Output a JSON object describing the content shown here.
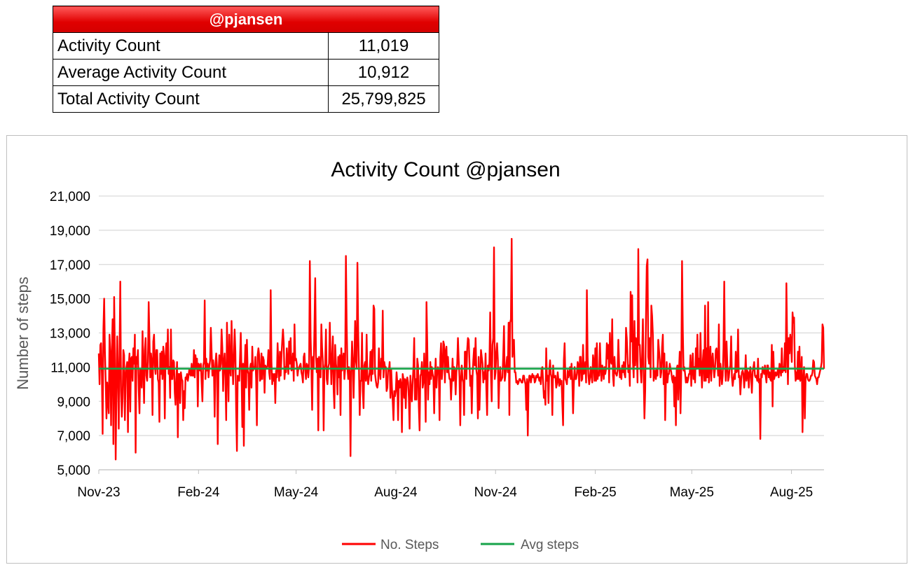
{
  "summary": {
    "header": "@pjansen",
    "rows": [
      {
        "label": "Activity Count",
        "value": "11,019"
      },
      {
        "label": "Average Activity Count",
        "value": "10,912"
      },
      {
        "label": "Total Activity Count",
        "value": "25,799,825"
      }
    ]
  },
  "colors": {
    "steps": "#ff0000",
    "avg": "#17a34a",
    "grid": "#d9d9d9"
  },
  "chart_data": {
    "type": "line",
    "title": "Activity Count @pjansen",
    "xlabel": "",
    "ylabel": "Number of steps",
    "ylim": [
      5000,
      21000
    ],
    "y_ticks": [
      "5,000",
      "7,000",
      "9,000",
      "11,000",
      "13,000",
      "15,000",
      "17,000",
      "19,000",
      "21,000"
    ],
    "x_tick_labels": [
      "Nov-23",
      "Feb-24",
      "May-24",
      "Aug-24",
      "Nov-24",
      "Feb-25",
      "May-25",
      "Aug-25"
    ],
    "x_range": [
      "2023-11-01",
      "2025-08-31"
    ],
    "grid": true,
    "legend_position": "bottom",
    "series": [
      {
        "name": "No. Steps",
        "x_start": "2023-11-01",
        "x_step": "1 day",
        "values": [
          11800,
          10000,
          12300,
          12400,
          10600,
          7100,
          13200,
          15000,
          11900,
          10100,
          8000,
          10100,
          9000,
          8300,
          12900,
          11800,
          7600,
          11800,
          13800,
          6500,
          15100,
          11800,
          5600,
          9700,
          12800,
          10500,
          7400,
          11700,
          16000,
          9600,
          8100,
          9200,
          12000,
          11700,
          7900,
          10400,
          11000,
          11300,
          7200,
          11100,
          11800,
          8400,
          11500,
          11600,
          10200,
          12100,
          11200,
          12900,
          6000,
          11600,
          11200,
          12000,
          9700,
          8300,
          10900,
          10500,
          9800,
          13100,
          11000,
          8900,
          12000,
          12700,
          10500,
          10200,
          11300,
          14800,
          12700,
          10400,
          11800,
          11300,
          8200,
          12500,
          12900,
          11100,
          10600,
          12000,
          12000,
          10300,
          10100,
          7800,
          11800,
          10600,
          11900,
          10300,
          12200,
          11600,
          8000,
          11600,
          12400,
          11000,
          13200,
          10600,
          11000,
          9200,
          13200,
          10300,
          10300,
          11400,
          11300,
          9500,
          8800,
          10300,
          11300,
          6900,
          10600,
          10600,
          8900,
          10700,
          10300,
          10200,
          7900,
          9600,
          8600,
          10400,
          10300,
          10600,
          10200,
          10500,
          10900,
          10600,
          10500,
          11200,
          10500,
          10500,
          12000,
          10400,
          11700,
          11000,
          11500,
          8700,
          11200,
          11100,
          10800,
          11200,
          10100,
          9000,
          11100,
          11300,
          14900,
          10300,
          11500,
          10800,
          11200,
          10400,
          11000,
          11400,
          13300,
          11900,
          10500,
          11400,
          10800,
          8100,
          11200,
          11800,
          11000,
          6500,
          10600,
          11700,
          10800,
          11200,
          13200,
          12100,
          9600,
          11300,
          11800,
          10400,
          7900,
          13600,
          11200,
          9000,
          12900,
          10900,
          10500,
          13700,
          11700,
          10000,
          11400,
          13200,
          11900,
          8400,
          6100,
          10500,
          10300,
          10200,
          11500,
          13000,
          10700,
          7500,
          11200,
          6400,
          10900,
          12300,
          9800,
          12600,
          10800,
          10600,
          8500,
          10900,
          11200,
          9800,
          12200,
          10800,
          11000,
          10900,
          11600,
          10300,
          7600,
          11700,
          12100,
          11700,
          10200,
          10300,
          11800,
          10300,
          11600,
          11400,
          9500,
          11100,
          10900,
          11000,
          11100,
          12000,
          10700,
          10300,
          15500,
          11300,
          10000,
          10600,
          10200,
          10600,
          8900,
          10800,
          10400,
          12400,
          11100,
          10200,
          11900,
          10500,
          11600,
          12500,
          13200,
          12400,
          10300,
          11000,
          10700,
          12100,
          11300,
          10600,
          12500,
          11200,
          12700,
          10800,
          10900,
          11800,
          10200,
          13500,
          11400,
          11500,
          11200,
          10500,
          10900,
          11000,
          11100,
          11200,
          10700,
          10500,
          10100,
          11600,
          11800,
          10800,
          10300,
          11200,
          11100,
          10400,
          11000,
          17200,
          12800,
          11000,
          8500,
          11600,
          10900,
          13300,
          16200,
          11700,
          10700,
          11500,
          7300,
          11600,
          10500,
          10400,
          13500,
          12100,
          11300,
          7300,
          10900,
          11200,
          13200,
          10300,
          10000,
          11000,
          11200,
          13600,
          11700,
          10000,
          11600,
          12800,
          9700,
          8600,
          12300,
          11200,
          10800,
          9400,
          11600,
          10400,
          11700,
          8200,
          12100,
          10800,
          11500,
          11800,
          10300,
          10900,
          17500,
          13500,
          11000,
          10300,
          11000,
          10700,
          5800,
          10700,
          12500,
          11400,
          9200,
          11300,
          13700,
          11400,
          11000,
          17100,
          13100,
          11000,
          8200,
          10200,
          10200,
          13000,
          9600,
          8600,
          11100,
          11300,
          10200,
          12900,
          10400,
          10000,
          10400,
          10700,
          11900,
          10200,
          12000,
          10600,
          14600,
          14400,
          10600,
          10200,
          9900,
          9800,
          10100,
          12100,
          10700,
          10300,
          11500,
          11000,
          14300,
          10400,
          11300,
          11000,
          11000,
          9600,
          9800,
          10900,
          10800,
          11300,
          9200,
          10900,
          9800,
          9000,
          7900,
          9600,
          9300,
          9600,
          10700,
          10100,
          7900,
          10200,
          9800,
          10300,
          10000,
          7200,
          10600,
          10300,
          9200,
          10300,
          8600,
          10200,
          10400,
          10100,
          9200,
          7400,
          10500,
          9700,
          9000,
          10100,
          11000,
          12700,
          9100,
          10300,
          9100,
          11500,
          11100,
          8700,
          7300,
          10500,
          10600,
          11300,
          9800,
          10100,
          11800,
          10300,
          7800,
          14800,
          12400,
          9100,
          10700,
          10000,
          11300,
          10300,
          11000,
          10600,
          10400,
          8300,
          10400,
          11500,
          9800,
          10700,
          11000,
          10800,
          7900,
          11600,
          12400,
          10300,
          10900,
          12500,
          12300,
          10100,
          11900,
          12200,
          10700,
          11600,
          10700,
          10300,
          10300,
          9100,
          10200,
          11500,
          10200,
          11000,
          10800,
          9400,
          10700,
          11200,
          12700,
          11400,
          10400,
          7600,
          10300,
          11100,
          10300,
          10100,
          8200,
          11900,
          11900,
          10300,
          12000,
          12700,
          12600,
          11300,
          9900,
          10500,
          8300,
          10400,
          11400,
          12100,
          11100,
          12700,
          10800,
          10500,
          8000,
          11600,
          8500,
          10100,
          12000,
          11600,
          11200,
          10100,
          10700,
          10300,
          11800,
          9700,
          8200,
          11100,
          10800,
          11300,
          14200,
          10500,
          9000,
          12300,
          12700,
          18000,
          10300,
          10700,
          11900,
          12400,
          11400,
          8600,
          10400,
          11000,
          10200,
          10300,
          10400,
          11700,
          13400,
          10200,
          10600,
          11100,
          11600,
          10700,
          13600,
          8200,
          13600,
          13800,
          18500,
          11600,
          12400,
          12600,
          10700,
          10700,
          10100,
          10200,
          10000,
          10100,
          10300,
          10300,
          10200,
          10100,
          10100,
          10500,
          10500,
          10200,
          10000,
          8500,
          10300,
          7000,
          10000,
          10500,
          10500,
          10100,
          10400,
          10600,
          10400,
          10500,
          10100,
          10200,
          10500,
          10400,
          10600,
          10400,
          10200,
          10400,
          10000,
          10900,
          11000,
          10100,
          9200,
          9600,
          8800,
          12100,
          10200,
          10500,
          8900,
          10800,
          11400,
          10600,
          10400,
          8200,
          11100,
          10400,
          10400,
          10500,
          9800,
          10000,
          10700,
          10200,
          9900,
          10300,
          10000,
          10200,
          8900,
          7600,
          11400,
          12400,
          10300,
          10200,
          10000,
          10800,
          10400,
          10600,
          11000,
          10300,
          11200,
          10300,
          8300,
          10000,
          11000,
          10300,
          10300,
          10600,
          11300,
          11100,
          9900,
          11600,
          11600,
          10200,
          10300,
          12300,
          10600,
          10700,
          11300,
          10100,
          15500,
          11600,
          10500,
          10000,
          10400,
          11000,
          10500,
          10100,
          11700,
          11300,
          10200,
          12100,
          10200,
          12400,
          10300,
          10700,
          10500,
          12400,
          11000,
          10200,
          11100,
          10900,
          10300,
          11000,
          10600,
          10900,
          12400,
          11500,
          12300,
          10100,
          13000,
          11400,
          11200,
          13800,
          10500,
          9900,
          11600,
          10700,
          10600,
          10500,
          10800,
          12600,
          11200,
          10400,
          10800,
          10300,
          11100,
          10700,
          11300,
          10600,
          10400,
          13300,
          12700,
          11600,
          10700,
          11100,
          9900,
          15400,
          12500,
          15200,
          11300,
          10400,
          13700,
          11100,
          12700,
          12200,
          10100,
          17900,
          12300,
          12300,
          10800,
          10100,
          11800,
          13800,
          10500,
          8000,
          9600,
          13800,
          16900,
          17300,
          11600,
          11200,
          12700,
          10400,
          14600,
          14000,
          12900,
          10200,
          10500,
          10800,
          10300,
          10900,
          10500,
          12600,
          12000,
          11400,
          10400,
          10700,
          12200,
          12900,
          10000,
          11800,
          7900,
          10200,
          11300,
          10100,
          10600,
          10600,
          11200,
          10900,
          10700,
          10300,
          10100,
          10500,
          8700,
          10400,
          7600,
          10900,
          11100,
          9100,
          10800,
          11900,
          8300,
          10700,
          17200,
          13200,
          10800,
          11000,
          10600,
          10100,
          10400,
          10100,
          10300,
          10600,
          10600,
          11700,
          9900,
          10900,
          11800,
          10300,
          11000,
          10100,
          12100,
          10900,
          12900,
          11000,
          11500,
          10500,
          13000,
          11000,
          9800,
          11300,
          12000,
          10200,
          14600,
          10200,
          12100,
          10400,
          14800,
          10100,
          11100,
          12200,
          10200,
          11400,
          11800,
          11000,
          10400,
          10900,
          12000,
          12100,
          11400,
          10500,
          13500,
          9900,
          11200,
          10700,
          10000,
          10500,
          12100,
          16000,
          11100,
          10200,
          12500,
          11200,
          10200,
          10400,
          10900,
          11100,
          12800,
          10400,
          9900,
          10300,
          10600,
          10300,
          11900,
          10700,
          10800,
          13200,
          10400,
          10500,
          9400,
          10200,
          10700,
          10800,
          10600,
          9800,
          10500,
          11700,
          10200,
          10800,
          10700,
          9800,
          10600,
          11000,
          10400,
          9500,
          10700,
          11000,
          11300,
          10500,
          10400,
          10500,
          10200,
          11500,
          10100,
          10300,
          6800,
          10600,
          10400,
          11000,
          10800,
          10600,
          11100,
          10500,
          10100,
          11100,
          11100,
          10400,
          10700,
          10300,
          10200,
          12300,
          8700,
          11900,
          10300,
          10500,
          10700,
          10500,
          10600,
          10900,
          10400,
          11200,
          10900,
          10500,
          12100,
          10700,
          11000,
          10800,
          12400,
          10700,
          15900,
          12300,
          10000,
          12700,
          11800,
          12900,
          12400,
          11300,
          14200,
          13600,
          13900,
          11100,
          10200,
          10700,
          10300,
          11900,
          10300,
          12200,
          10200,
          10400,
          11600,
          7200,
          10200,
          11000,
          8000,
          10300,
          10600,
          10600,
          10300,
          10200,
          10200,
          10300,
          10500,
          10500,
          10700,
          11400,
          11300,
          10500,
          10400,
          10300,
          10000,
          10400,
          10400,
          10600,
          10800,
          11000,
          11300,
          13500,
          13300,
          10900
        ]
      },
      {
        "name": "Avg steps",
        "values": [
          10912
        ]
      }
    ]
  }
}
